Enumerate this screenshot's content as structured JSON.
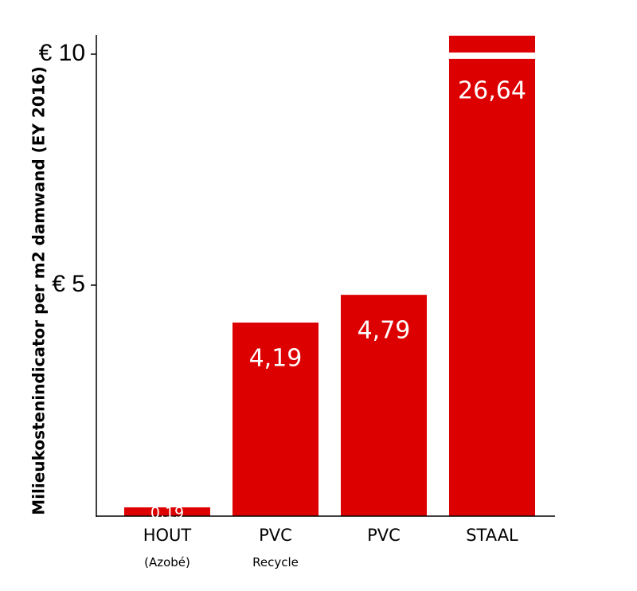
{
  "chart_data": {
    "type": "bar",
    "ylabel": "Milieukostenindicator per m2 damwand (EY 2016)",
    "ylim": [
      0,
      10.4
    ],
    "axis_break": true,
    "y_ticks": [
      {
        "value": 5,
        "label": "€ 5"
      },
      {
        "value": 10,
        "label": "€ 10"
      }
    ],
    "categories": [
      "HOUT",
      "PVC",
      "PVC",
      "STAAL"
    ],
    "sublabels": [
      "(Azobé)",
      "Recycle",
      "",
      ""
    ],
    "values": [
      0.19,
      4.19,
      4.79,
      26.64
    ],
    "value_labels": [
      "0,19",
      "4,19",
      "4,79",
      "26,64"
    ],
    "bar_color": "#dd0000",
    "grid": false,
    "legend": "none"
  }
}
